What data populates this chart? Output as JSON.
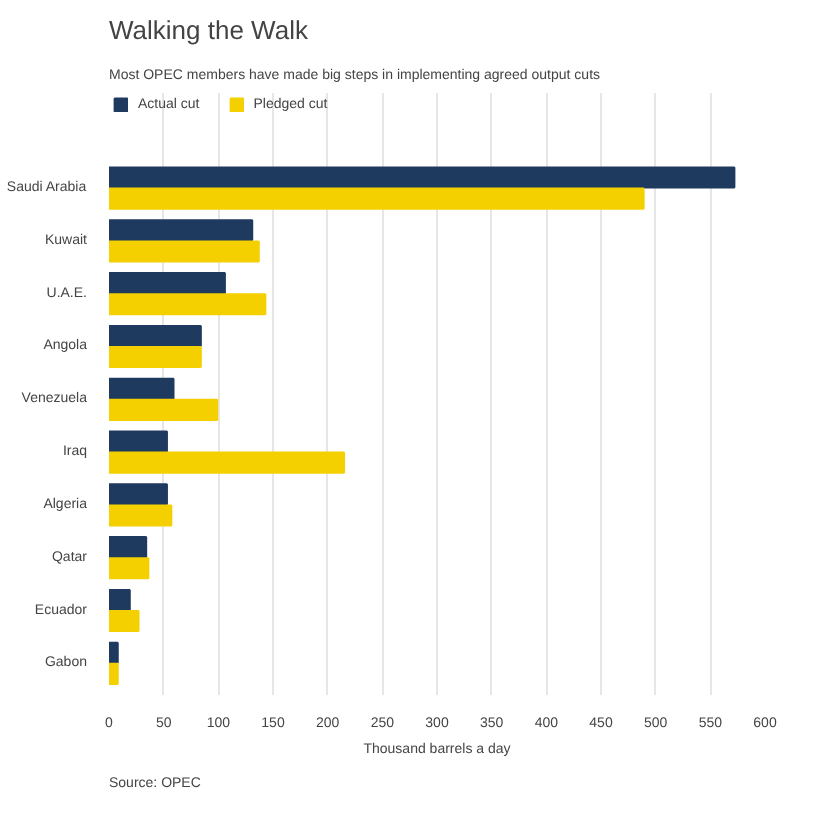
{
  "chart_data": {
    "type": "bar",
    "orientation": "horizontal",
    "title": "Walking the Walk",
    "subtitle": "Most OPEC members have made big steps in implementing agreed output cuts",
    "xlabel": "Thousand barrels a day",
    "categories": [
      "Saudi Arabia",
      "Kuwait",
      "U.A.E.",
      "Angola",
      "Venezuela",
      "Iraq",
      "Algeria",
      "Qatar",
      "Ecuador",
      "Gabon"
    ],
    "series": [
      {
        "name": "Actual cut",
        "color": "#1f3a5f",
        "values": [
          572,
          131,
          106,
          84,
          59,
          53,
          53,
          34,
          19,
          8
        ]
      },
      {
        "name": "Pledged cut",
        "color": "#f5d000",
        "values": [
          489,
          137,
          143,
          84,
          99,
          215,
          57,
          36,
          27,
          8
        ]
      }
    ],
    "xlim": [
      0,
      600
    ],
    "xticks": [
      0,
      50,
      100,
      150,
      200,
      250,
      300,
      350,
      400,
      450,
      500,
      550,
      600
    ],
    "grid": "x",
    "legend": "top left",
    "annotations": [
      "Source: OPEC"
    ]
  }
}
